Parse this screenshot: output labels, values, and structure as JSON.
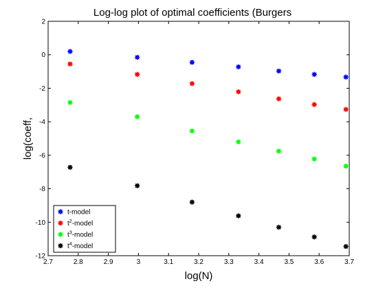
{
  "chart_data": {
    "type": "scatter",
    "title": "Log-log plot of optimal coefficients (Burgers",
    "xlabel": "log(N)",
    "ylabel": "log(coeff,",
    "xlim": [
      2.7,
      3.7
    ],
    "ylim": [
      -12,
      2
    ],
    "xticks": [
      "2.7",
      "2.8",
      "2.9",
      "3",
      "3.1",
      "3.2",
      "3.3",
      "3.4",
      "3.5",
      "3.6",
      "3.7"
    ],
    "yticks": [
      "-12",
      "-10",
      "-8",
      "-6",
      "-4",
      "-2",
      "0",
      "2"
    ],
    "grid": false,
    "legend_position": "bottom-left",
    "x": [
      2.773,
      2.996,
      3.178,
      3.332,
      3.466,
      3.584,
      3.689
    ],
    "series": [
      {
        "name_base": "t",
        "name_exp": "",
        "name_suffix": "-model",
        "color": "#0000ff",
        "values": [
          0.2,
          -0.15,
          -0.45,
          -0.72,
          -0.97,
          -1.17,
          -1.33
        ]
      },
      {
        "name_base": "t",
        "name_exp": "2",
        "name_suffix": "-model",
        "color": "#ff0000",
        "values": [
          -0.55,
          -1.17,
          -1.72,
          -2.21,
          -2.63,
          -2.97,
          -3.26
        ]
      },
      {
        "name_base": "t",
        "name_exp": "3",
        "name_suffix": "-model",
        "color": "#00ff00",
        "values": [
          -2.85,
          -3.7,
          -4.55,
          -5.2,
          -5.75,
          -6.22,
          -6.65
        ]
      },
      {
        "name_base": "t",
        "name_exp": "4",
        "name_suffix": "-model",
        "color": "#000000",
        "values": [
          -6.72,
          -7.82,
          -8.8,
          -9.62,
          -10.3,
          -10.88,
          -11.45
        ]
      }
    ]
  }
}
